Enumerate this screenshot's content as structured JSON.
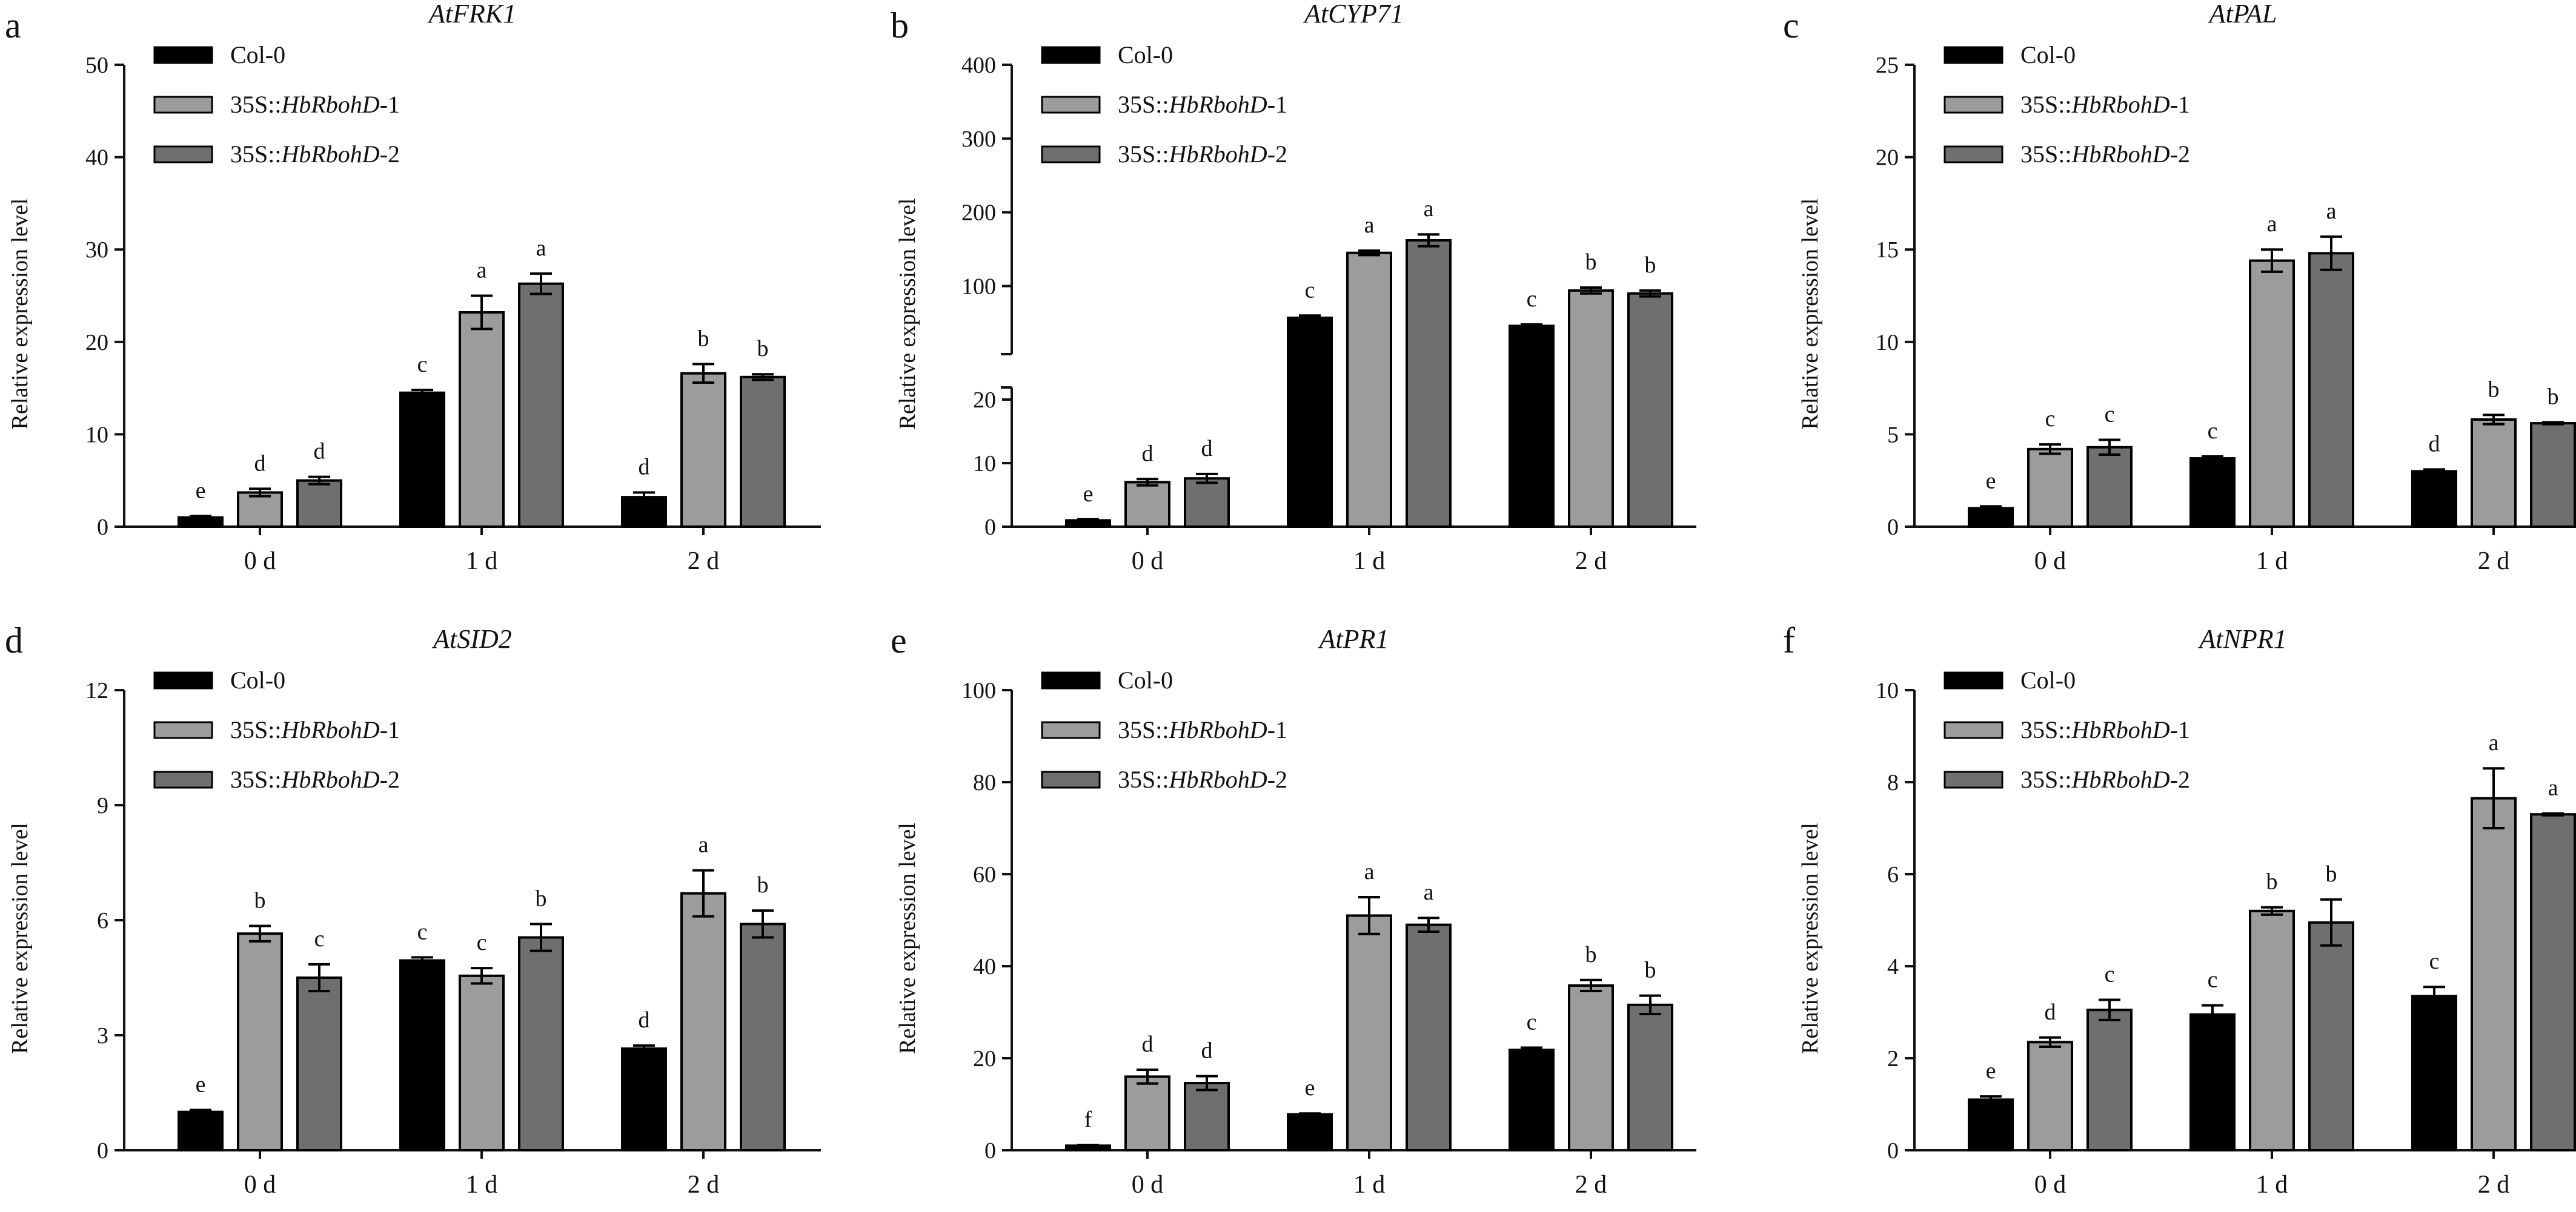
{
  "figure": {
    "legend_prefix": "35S::",
    "colors": {
      "Col-0": "#000000",
      "35S::HbRbohD-1": "#9c9c9c",
      "35S::HbRbohD-2": "#6f6f6f"
    }
  },
  "chart_data": [
    {
      "panel": "a",
      "type": "bar",
      "title": "AtFRK1",
      "ylabel": "Relative expression level",
      "xlabel": "",
      "categories": [
        "0 d",
        "1 d",
        "2 d"
      ],
      "ylim": [
        0,
        50
      ],
      "yticks": [
        0,
        10,
        20,
        30,
        40,
        50
      ],
      "legend_position": "top-left",
      "series": [
        {
          "name": "Col-0",
          "italic": "",
          "suffix": "",
          "values": [
            1.0,
            14.5,
            3.2
          ],
          "errors": [
            0.15,
            0.3,
            0.5
          ],
          "letters": [
            "e",
            "c",
            "d"
          ]
        },
        {
          "name": "35S::HbRbohD-1",
          "italic": "HbRbohD",
          "suffix": "-1",
          "values": [
            3.7,
            23.2,
            16.6
          ],
          "errors": [
            0.4,
            1.8,
            1.0
          ],
          "letters": [
            "d",
            "a",
            "b"
          ]
        },
        {
          "name": "35S::HbRbohD-2",
          "italic": "HbRbohD",
          "suffix": "-2",
          "values": [
            5.0,
            26.3,
            16.2
          ],
          "errors": [
            0.4,
            1.1,
            0.3
          ],
          "letters": [
            "d",
            "a",
            "b"
          ]
        }
      ]
    },
    {
      "panel": "b",
      "type": "bar",
      "title": "AtCYP71",
      "ylabel": "Relative expression level",
      "xlabel": "",
      "categories": [
        "0 d",
        "1 d",
        "2 d"
      ],
      "ylim": [
        0,
        400
      ],
      "axis_break": {
        "lower": [
          0,
          20
        ],
        "upper": [
          20,
          400
        ]
      },
      "yticks": [
        0,
        10,
        20,
        100,
        200,
        300,
        400
      ],
      "legend_position": "top-left",
      "series": [
        {
          "name": "Col-0",
          "italic": "",
          "suffix": "",
          "values": [
            1.0,
            57,
            46
          ],
          "errors": [
            0.15,
            3,
            2
          ],
          "letters": [
            "e",
            "c",
            "c"
          ]
        },
        {
          "name": "35S::HbRbohD-1",
          "italic": "HbRbohD",
          "suffix": "-1",
          "values": [
            7.0,
            145,
            94
          ],
          "errors": [
            0.5,
            3,
            4
          ],
          "letters": [
            "d",
            "a",
            "b"
          ]
        },
        {
          "name": "35S::HbRbohD-2",
          "italic": "HbRbohD",
          "suffix": "-2",
          "values": [
            7.6,
            162,
            90
          ],
          "errors": [
            0.7,
            8,
            4
          ],
          "letters": [
            "d",
            "a",
            "b"
          ]
        }
      ]
    },
    {
      "panel": "c",
      "type": "bar",
      "title": "AtPAL",
      "ylabel": "Relative expression level",
      "xlabel": "",
      "categories": [
        "0 d",
        "1 d",
        "2 d"
      ],
      "ylim": [
        0,
        25
      ],
      "yticks": [
        0,
        5,
        10,
        15,
        20,
        25
      ],
      "legend_position": "top-left",
      "series": [
        {
          "name": "Col-0",
          "italic": "",
          "suffix": "",
          "values": [
            1.0,
            3.7,
            3.0
          ],
          "errors": [
            0.1,
            0.1,
            0.1
          ],
          "letters": [
            "e",
            "c",
            "d"
          ]
        },
        {
          "name": "35S::HbRbohD-1",
          "italic": "HbRbohD",
          "suffix": "-1",
          "values": [
            4.2,
            14.4,
            5.8
          ],
          "errors": [
            0.25,
            0.6,
            0.25
          ],
          "letters": [
            "c",
            "a",
            "b"
          ]
        },
        {
          "name": "35S::HbRbohD-2",
          "italic": "HbRbohD",
          "suffix": "-2",
          "values": [
            4.3,
            14.8,
            5.6
          ],
          "errors": [
            0.4,
            0.9,
            0.05
          ],
          "letters": [
            "c",
            "a",
            "b"
          ]
        }
      ]
    },
    {
      "panel": "d",
      "type": "bar",
      "title": "AtSID2",
      "ylabel": "Relative expression level",
      "xlabel": "",
      "categories": [
        "0 d",
        "1 d",
        "2 d"
      ],
      "ylim": [
        0,
        12
      ],
      "yticks": [
        0,
        3,
        6,
        9,
        12
      ],
      "legend_position": "top-left",
      "series": [
        {
          "name": "Col-0",
          "italic": "",
          "suffix": "",
          "values": [
            1.0,
            4.95,
            2.65
          ],
          "errors": [
            0.05,
            0.08,
            0.08
          ],
          "letters": [
            "e",
            "c",
            "d"
          ]
        },
        {
          "name": "35S::HbRbohD-1",
          "italic": "HbRbohD",
          "suffix": "-1",
          "values": [
            5.65,
            4.55,
            6.7
          ],
          "errors": [
            0.2,
            0.2,
            0.6
          ],
          "letters": [
            "b",
            "c",
            "a"
          ]
        },
        {
          "name": "35S::HbRbohD-2",
          "italic": "HbRbohD",
          "suffix": "-2",
          "values": [
            4.5,
            5.55,
            5.9
          ],
          "errors": [
            0.35,
            0.35,
            0.35
          ],
          "letters": [
            "c",
            "b",
            "b"
          ]
        }
      ]
    },
    {
      "panel": "e",
      "type": "bar",
      "title": "AtPR1",
      "ylabel": "Relative expression level",
      "xlabel": "",
      "categories": [
        "0 d",
        "1 d",
        "2 d"
      ],
      "ylim": [
        0,
        100
      ],
      "yticks": [
        0,
        20,
        40,
        60,
        80,
        100
      ],
      "legend_position": "top-left",
      "series": [
        {
          "name": "Col-0",
          "italic": "",
          "suffix": "",
          "values": [
            1.0,
            7.8,
            21.8
          ],
          "errors": [
            0.1,
            0.2,
            0.5
          ],
          "letters": [
            "f",
            "e",
            "c"
          ]
        },
        {
          "name": "35S::HbRbohD-1",
          "italic": "HbRbohD",
          "suffix": "-1",
          "values": [
            16.0,
            51.0,
            35.8
          ],
          "errors": [
            1.5,
            4.0,
            1.2
          ],
          "letters": [
            "d",
            "a",
            "b"
          ]
        },
        {
          "name": "35S::HbRbohD-2",
          "italic": "HbRbohD",
          "suffix": "-2",
          "values": [
            14.6,
            49.0,
            31.6
          ],
          "errors": [
            1.5,
            1.5,
            2.0
          ],
          "letters": [
            "d",
            "a",
            "b"
          ]
        }
      ]
    },
    {
      "panel": "f",
      "type": "bar",
      "title": "AtNPR1",
      "ylabel": "Relative expression level",
      "xlabel": "",
      "categories": [
        "0 d",
        "1 d",
        "2 d"
      ],
      "ylim": [
        0,
        10
      ],
      "yticks": [
        0,
        2,
        4,
        6,
        8,
        10
      ],
      "legend_position": "top-left",
      "series": [
        {
          "name": "Col-0",
          "italic": "",
          "suffix": "",
          "values": [
            1.1,
            2.95,
            3.35
          ],
          "errors": [
            0.07,
            0.2,
            0.2
          ],
          "letters": [
            "e",
            "c",
            "c"
          ]
        },
        {
          "name": "35S::HbRbohD-1",
          "italic": "HbRbohD",
          "suffix": "-1",
          "values": [
            2.35,
            5.2,
            7.65
          ],
          "errors": [
            0.1,
            0.08,
            0.65
          ],
          "letters": [
            "d",
            "b",
            "a"
          ]
        },
        {
          "name": "35S::HbRbohD-2",
          "italic": "HbRbohD",
          "suffix": "-2",
          "values": [
            3.05,
            4.95,
            7.3
          ],
          "errors": [
            0.22,
            0.5,
            0.02
          ],
          "letters": [
            "c",
            "b",
            "a"
          ]
        }
      ]
    }
  ]
}
